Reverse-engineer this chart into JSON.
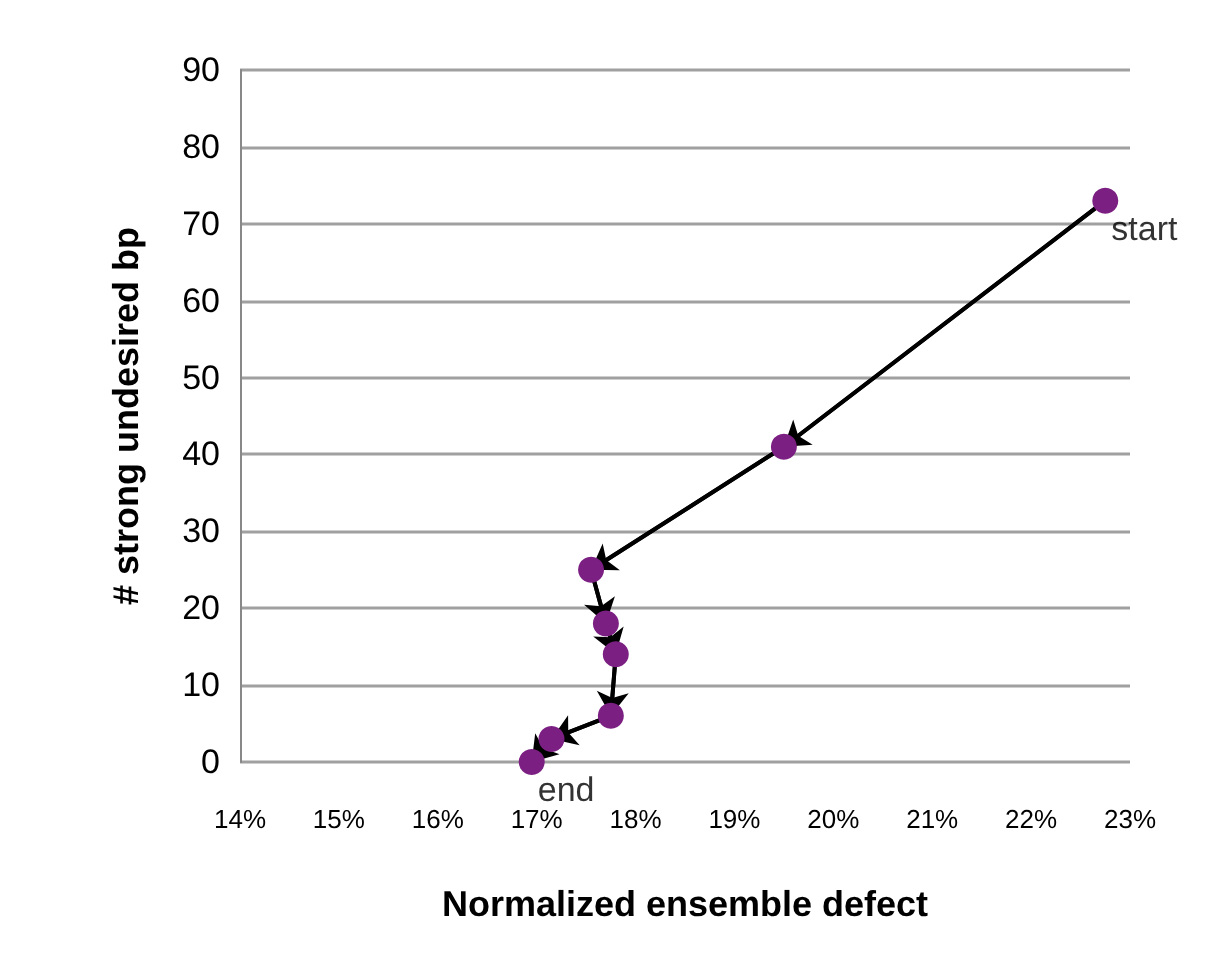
{
  "chart_data": {
    "type": "line",
    "xlabel": "Normalized ensemble defect",
    "ylabel": "# strong undesired bp",
    "x": [
      22.75,
      19.5,
      17.55,
      17.7,
      17.8,
      17.75,
      17.15,
      16.95
    ],
    "series": [
      {
        "color": "#7b1f82",
        "values": [
          73,
          41,
          25,
          18,
          14,
          6,
          3,
          0
        ]
      }
    ],
    "xlim": [
      14,
      23
    ],
    "xticks": [
      {
        "value": 14,
        "label": "14%"
      },
      {
        "value": 15,
        "label": "15%"
      },
      {
        "value": 16,
        "label": "16%"
      },
      {
        "value": 17,
        "label": "17%"
      },
      {
        "value": 18,
        "label": "18%"
      },
      {
        "value": 19,
        "label": "19%"
      },
      {
        "value": 20,
        "label": "20%"
      },
      {
        "value": 21,
        "label": "21%"
      },
      {
        "value": 22,
        "label": "22%"
      },
      {
        "value": 23,
        "label": "23%"
      }
    ],
    "ylim": [
      0,
      90
    ],
    "yticks": [
      0,
      10,
      20,
      30,
      40,
      50,
      60,
      70,
      80,
      90
    ],
    "grid": "y",
    "marker": "circle",
    "line_style": "solid",
    "annotations": [
      {
        "text": "start",
        "x": 22.75,
        "y": 73
      },
      {
        "text": "end",
        "x": 16.95,
        "y": 0
      }
    ]
  }
}
